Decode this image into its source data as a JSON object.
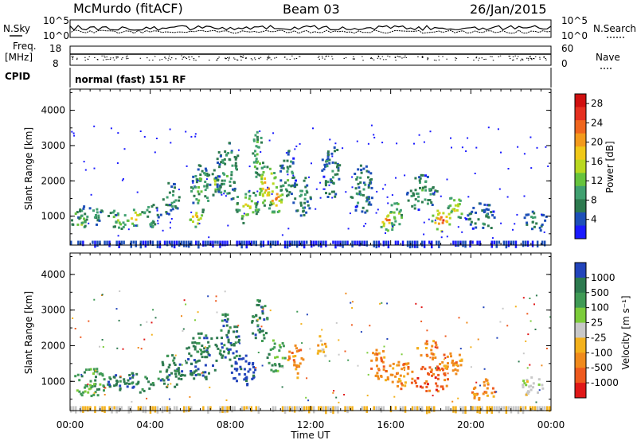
{
  "header": {
    "station": "McMurdo (fitACF)",
    "beam": "Beam 03",
    "date": "26/Jan/2015"
  },
  "top_panels": {
    "nsky_label": "N.Sky",
    "nsearch_label": "N.Search",
    "freq_label": "Freq.",
    "freq_unit": "[MHz]",
    "nave_label": "Nave",
    "cpid_label": "CPID",
    "cpid_value": "normal (fast) 151 RF",
    "noise_ticks_left": [
      "10^5",
      "10^0"
    ],
    "noise_ticks_right": [
      "10^5",
      "10^0"
    ],
    "freq_ticks": [
      "18",
      "8"
    ],
    "nave_ticks": [
      "60",
      "0"
    ]
  },
  "chart_data": [
    {
      "type": "heatmap",
      "name": "power-panel",
      "x": [
        "00:00",
        "04:00",
        "08:00",
        "12:00",
        "16:00",
        "20:00",
        "00:00"
      ],
      "xlim": [
        0,
        24
      ],
      "ylabel": "Slant Range [km]",
      "y_ticks": [
        "4000",
        "3000",
        "2000",
        "1000"
      ],
      "ylim": [
        180,
        4600
      ],
      "colorbar": {
        "label": "Power [dB]",
        "ticks": [
          "28",
          "24",
          "20",
          "16",
          "12",
          "8",
          "4"
        ],
        "range": [
          0,
          30
        ],
        "colors": [
          "#1a1aff",
          "#1d4fb8",
          "#2d7a4f",
          "#40a070",
          "#66c33d",
          "#b9d820",
          "#f0c818",
          "#f39a1c",
          "#f0661e",
          "#e53020",
          "#d01010"
        ]
      },
      "blobs": [
        {
          "t": 0.4,
          "r": 900,
          "dt": 0.4,
          "dr": 350,
          "v": 18
        },
        {
          "t": 1.0,
          "r": 1050,
          "dt": 0.7,
          "dr": 300,
          "v": 12
        },
        {
          "t": 2.4,
          "r": 950,
          "dt": 0.6,
          "dr": 300,
          "v": 14
        },
        {
          "t": 3.2,
          "r": 1000,
          "dt": 0.5,
          "dr": 250,
          "v": 20
        },
        {
          "t": 4.0,
          "r": 1050,
          "dt": 0.5,
          "dr": 350,
          "v": 12
        },
        {
          "t": 5.0,
          "r": 1500,
          "dt": 0.4,
          "dr": 500,
          "v": 10
        },
        {
          "t": 6.2,
          "r": 1000,
          "dt": 0.4,
          "dr": 300,
          "v": 22
        },
        {
          "t": 6.5,
          "r": 1800,
          "dt": 0.5,
          "dr": 700,
          "v": 12
        },
        {
          "t": 7.2,
          "r": 2000,
          "dt": 0.3,
          "dr": 400,
          "v": 14
        },
        {
          "t": 7.8,
          "r": 2300,
          "dt": 0.6,
          "dr": 900,
          "v": 10
        },
        {
          "t": 8.8,
          "r": 1300,
          "dt": 0.6,
          "dr": 500,
          "v": 18
        },
        {
          "t": 9.3,
          "r": 2800,
          "dt": 0.3,
          "dr": 700,
          "v": 14
        },
        {
          "t": 9.8,
          "r": 1900,
          "dt": 0.5,
          "dr": 600,
          "v": 22
        },
        {
          "t": 10.2,
          "r": 1500,
          "dt": 0.4,
          "dr": 400,
          "v": 24
        },
        {
          "t": 10.8,
          "r": 2200,
          "dt": 0.4,
          "dr": 700,
          "v": 10
        },
        {
          "t": 11.5,
          "r": 1600,
          "dt": 0.5,
          "dr": 600,
          "v": 8
        },
        {
          "t": 13.0,
          "r": 2300,
          "dt": 0.5,
          "dr": 800,
          "v": 8
        },
        {
          "t": 14.5,
          "r": 1800,
          "dt": 0.6,
          "dr": 700,
          "v": 8
        },
        {
          "t": 15.8,
          "r": 900,
          "dt": 0.4,
          "dr": 300,
          "v": 24
        },
        {
          "t": 16.2,
          "r": 1100,
          "dt": 0.4,
          "dr": 350,
          "v": 16
        },
        {
          "t": 17.5,
          "r": 1700,
          "dt": 0.8,
          "dr": 500,
          "v": 10
        },
        {
          "t": 18.5,
          "r": 900,
          "dt": 0.5,
          "dr": 350,
          "v": 26
        },
        {
          "t": 19.2,
          "r": 1300,
          "dt": 0.4,
          "dr": 400,
          "v": 18
        },
        {
          "t": 20.5,
          "r": 1000,
          "dt": 0.8,
          "dr": 400,
          "v": 8
        },
        {
          "t": 23.2,
          "r": 900,
          "dt": 0.6,
          "dr": 300,
          "v": 10
        }
      ]
    },
    {
      "type": "heatmap",
      "name": "velocity-panel",
      "x": [
        "00:00",
        "04:00",
        "08:00",
        "12:00",
        "16:00",
        "20:00",
        "00:00"
      ],
      "xlim": [
        0,
        24
      ],
      "xlabel": "Time UT",
      "ylabel": "Slant Range [km]",
      "y_ticks": [
        "4000",
        "3000",
        "2000",
        "1000"
      ],
      "ylim": [
        180,
        4600
      ],
      "colorbar": {
        "label": "Velocity [m s⁻¹]",
        "ticks": [
          "1000",
          "500",
          "100",
          "25",
          "-25",
          "-100",
          "-500",
          "-1000"
        ],
        "colors": [
          "#2244bb",
          "#2d7a4f",
          "#3f9a55",
          "#7ccc3a",
          "#c8c8c8",
          "#f3b11c",
          "#f08a1c",
          "#ee5a1e",
          "#e01818"
        ]
      },
      "blobs": [
        {
          "t": 1.0,
          "r": 1000,
          "dt": 1.0,
          "dr": 400,
          "v": 2
        },
        {
          "t": 3.0,
          "r": 1000,
          "dt": 1.2,
          "dr": 300,
          "v": 1
        },
        {
          "t": 5.0,
          "r": 1300,
          "dt": 0.7,
          "dr": 500,
          "v": 1
        },
        {
          "t": 6.5,
          "r": 1700,
          "dt": 0.8,
          "dr": 700,
          "v": 1
        },
        {
          "t": 7.8,
          "r": 2200,
          "dt": 0.6,
          "dr": 800,
          "v": 1
        },
        {
          "t": 8.6,
          "r": 1300,
          "dt": 0.6,
          "dr": 500,
          "v": 0
        },
        {
          "t": 9.4,
          "r": 2700,
          "dt": 0.4,
          "dr": 700,
          "v": 1
        },
        {
          "t": 10.2,
          "r": 1800,
          "dt": 0.5,
          "dr": 500,
          "v": 2
        },
        {
          "t": 11.2,
          "r": 1600,
          "dt": 0.4,
          "dr": 500,
          "v": 6
        },
        {
          "t": 12.5,
          "r": 2000,
          "dt": 0.3,
          "dr": 400,
          "v": 5
        },
        {
          "t": 15.5,
          "r": 1500,
          "dt": 0.6,
          "dr": 500,
          "v": 6
        },
        {
          "t": 16.5,
          "r": 1200,
          "dt": 0.6,
          "dr": 400,
          "v": 6
        },
        {
          "t": 18.0,
          "r": 1100,
          "dt": 0.9,
          "dr": 400,
          "v": 7
        },
        {
          "t": 19.0,
          "r": 1500,
          "dt": 0.6,
          "dr": 400,
          "v": 6
        },
        {
          "t": 17.8,
          "r": 1900,
          "dt": 0.6,
          "dr": 300,
          "v": 6
        },
        {
          "t": 20.5,
          "r": 800,
          "dt": 0.8,
          "dr": 300,
          "v": 6
        },
        {
          "t": 23.0,
          "r": 900,
          "dt": 0.6,
          "dr": 300,
          "v": 4
        }
      ]
    }
  ]
}
